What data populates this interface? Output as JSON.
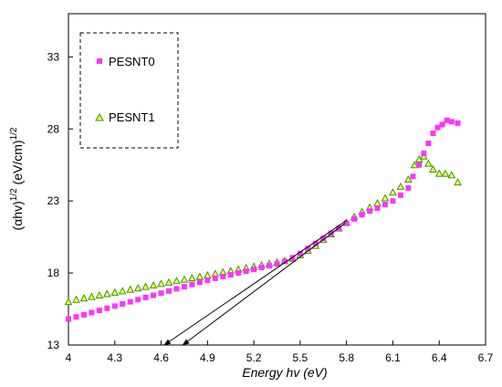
{
  "chart_data": {
    "type": "scatter",
    "xlabel": "Energy hv (eV)",
    "ylabel": "(αhv)^1/2 (eV/cm)^1/2",
    "ylabel_parts": {
      "a": "(",
      "alpha": "α",
      "b": "hv)",
      "exp1": "1/2",
      "c": " (eV/cm)",
      "exp2": "1/2"
    },
    "xlim": [
      4.0,
      6.7
    ],
    "ylim": [
      13,
      36
    ],
    "x_ticks": [
      "4",
      "4.3",
      "4.6",
      "4.9",
      "5.2",
      "5.5",
      "5.8",
      "6.1",
      "6.4",
      "6.7"
    ],
    "x_tick_values": [
      4.0,
      4.3,
      4.6,
      4.9,
      5.2,
      5.5,
      5.8,
      6.1,
      6.4,
      6.7
    ],
    "y_ticks": [
      "13",
      "18",
      "23",
      "28",
      "33"
    ],
    "y_tick_values": [
      13,
      18,
      23,
      28,
      33
    ],
    "legend_position": "top-left",
    "series": [
      {
        "name": "PESNT0",
        "marker": "square",
        "color": "#ff33ff",
        "points": [
          [
            4.0,
            14.8
          ],
          [
            4.05,
            14.95
          ],
          [
            4.1,
            15.1
          ],
          [
            4.15,
            15.25
          ],
          [
            4.2,
            15.4
          ],
          [
            4.25,
            15.55
          ],
          [
            4.3,
            15.7
          ],
          [
            4.35,
            15.85
          ],
          [
            4.4,
            16.0
          ],
          [
            4.45,
            16.15
          ],
          [
            4.5,
            16.3
          ],
          [
            4.55,
            16.45
          ],
          [
            4.6,
            16.6
          ],
          [
            4.65,
            16.75
          ],
          [
            4.7,
            16.9
          ],
          [
            4.75,
            17.05
          ],
          [
            4.8,
            17.2
          ],
          [
            4.85,
            17.35
          ],
          [
            4.9,
            17.5
          ],
          [
            4.95,
            17.63
          ],
          [
            5.0,
            17.75
          ],
          [
            5.05,
            17.88
          ],
          [
            5.1,
            18.0
          ],
          [
            5.15,
            18.12
          ],
          [
            5.2,
            18.25
          ],
          [
            5.25,
            18.38
          ],
          [
            5.3,
            18.5
          ],
          [
            5.35,
            18.63
          ],
          [
            5.4,
            18.8
          ],
          [
            5.45,
            19.05
          ],
          [
            5.5,
            19.35
          ],
          [
            5.55,
            19.7
          ],
          [
            5.6,
            20.05
          ],
          [
            5.65,
            20.4
          ],
          [
            5.7,
            20.75
          ],
          [
            5.75,
            21.1
          ],
          [
            5.8,
            21.45
          ],
          [
            5.85,
            21.75
          ],
          [
            5.9,
            22.05
          ],
          [
            5.95,
            22.3
          ],
          [
            6.0,
            22.5
          ],
          [
            6.05,
            22.75
          ],
          [
            6.1,
            23.0
          ],
          [
            6.15,
            23.4
          ],
          [
            6.2,
            23.9
          ],
          [
            6.23,
            24.7
          ],
          [
            6.27,
            25.5
          ],
          [
            6.3,
            26.3
          ],
          [
            6.33,
            27.0
          ],
          [
            6.36,
            27.7
          ],
          [
            6.39,
            28.1
          ],
          [
            6.42,
            28.3
          ],
          [
            6.45,
            28.6
          ],
          [
            6.48,
            28.5
          ],
          [
            6.52,
            28.4
          ]
        ]
      },
      {
        "name": "PESNT1",
        "marker": "triangle",
        "color": "#66cc00",
        "points": [
          [
            4.0,
            16.0
          ],
          [
            4.05,
            16.15
          ],
          [
            4.1,
            16.25
          ],
          [
            4.15,
            16.35
          ],
          [
            4.2,
            16.45
          ],
          [
            4.25,
            16.55
          ],
          [
            4.3,
            16.65
          ],
          [
            4.35,
            16.75
          ],
          [
            4.4,
            16.85
          ],
          [
            4.45,
            16.95
          ],
          [
            4.5,
            17.05
          ],
          [
            4.55,
            17.15
          ],
          [
            4.6,
            17.25
          ],
          [
            4.65,
            17.35
          ],
          [
            4.7,
            17.45
          ],
          [
            4.75,
            17.55
          ],
          [
            4.8,
            17.65
          ],
          [
            4.85,
            17.75
          ],
          [
            4.9,
            17.85
          ],
          [
            4.95,
            17.95
          ],
          [
            5.0,
            18.05
          ],
          [
            5.05,
            18.15
          ],
          [
            5.1,
            18.25
          ],
          [
            5.15,
            18.35
          ],
          [
            5.2,
            18.45
          ],
          [
            5.25,
            18.55
          ],
          [
            5.3,
            18.65
          ],
          [
            5.35,
            18.75
          ],
          [
            5.4,
            18.85
          ],
          [
            5.45,
            19.0
          ],
          [
            5.5,
            19.25
          ],
          [
            5.55,
            19.55
          ],
          [
            5.6,
            19.9
          ],
          [
            5.65,
            20.3
          ],
          [
            5.7,
            20.7
          ],
          [
            5.75,
            21.1
          ],
          [
            5.8,
            21.5
          ],
          [
            5.85,
            21.9
          ],
          [
            5.9,
            22.25
          ],
          [
            5.95,
            22.55
          ],
          [
            6.0,
            22.85
          ],
          [
            6.05,
            23.2
          ],
          [
            6.1,
            23.6
          ],
          [
            6.15,
            24.0
          ],
          [
            6.2,
            24.5
          ],
          [
            6.24,
            25.5
          ],
          [
            6.27,
            25.9
          ],
          [
            6.3,
            26.1
          ],
          [
            6.33,
            25.6
          ],
          [
            6.36,
            25.2
          ],
          [
            6.4,
            24.9
          ],
          [
            6.44,
            24.9
          ],
          [
            6.48,
            24.8
          ],
          [
            6.52,
            24.3
          ]
        ]
      }
    ],
    "annotations": [
      {
        "type": "arrow",
        "from": [
          5.8,
          21.65
        ],
        "to": [
          4.62,
          13.0
        ]
      },
      {
        "type": "arrow",
        "from": [
          5.79,
          21.45
        ],
        "to": [
          4.74,
          13.0
        ]
      }
    ]
  }
}
